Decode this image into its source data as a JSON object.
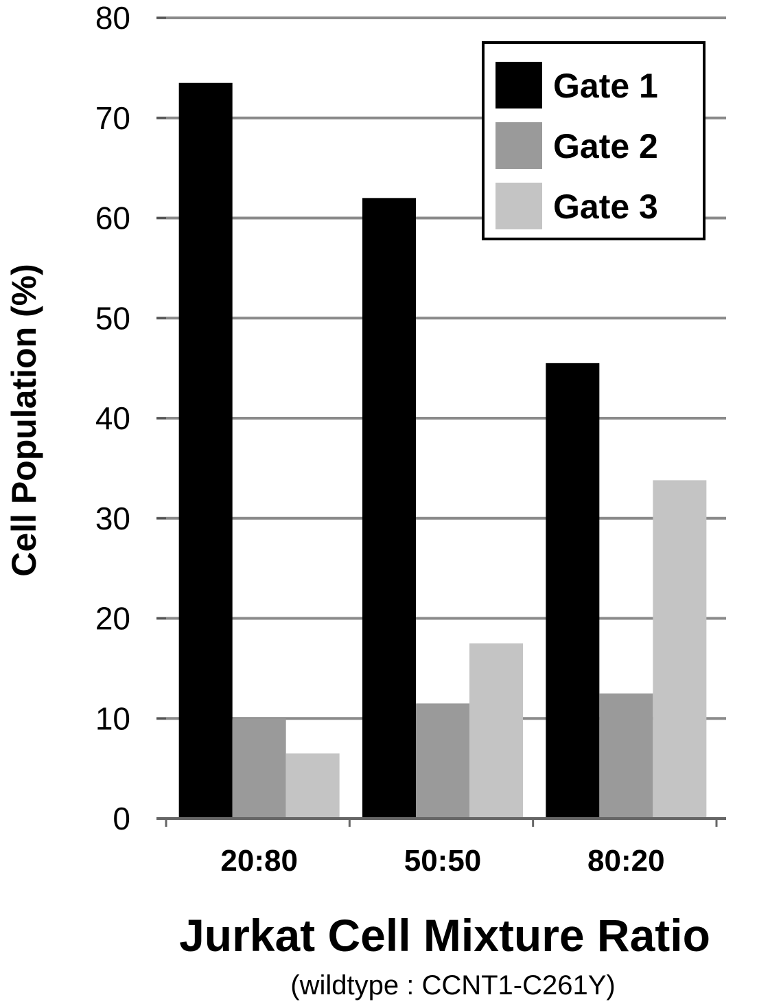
{
  "chart_data": {
    "type": "bar",
    "title": "",
    "xlabel": "Jurkat Cell Mixture Ratio",
    "xlabel_sub": "(wildtype : CCNT1-C261Y)",
    "ylabel": "Cell Population (%)",
    "ylim": [
      0,
      80
    ],
    "yticks": [
      0,
      10,
      20,
      30,
      40,
      50,
      60,
      70,
      80
    ],
    "grid": true,
    "legend_position": "top-right",
    "categories": [
      "20:80",
      "50:50",
      "80:20"
    ],
    "series": [
      {
        "name": "Gate 1",
        "color": "#000000",
        "values": [
          73.5,
          62,
          45.5
        ]
      },
      {
        "name": "Gate 2",
        "color": "#9a9a9a",
        "values": [
          10,
          11.5,
          12.5
        ]
      },
      {
        "name": "Gate 3",
        "color": "#c4c4c4",
        "values": [
          6.5,
          17.5,
          33.8
        ]
      }
    ]
  }
}
